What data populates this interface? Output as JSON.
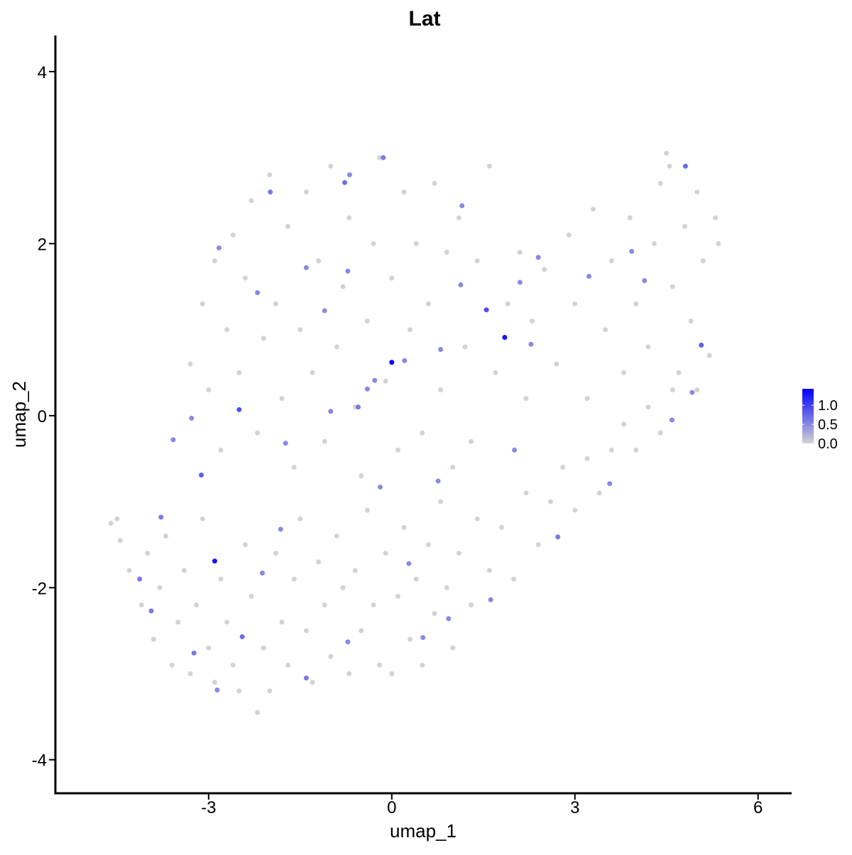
{
  "chart_data": {
    "type": "scatter",
    "title": "Lat",
    "xlabel": "umap_1",
    "ylabel": "umap_2",
    "xlim": [
      -5.51,
      6.55
    ],
    "ylim": [
      -4.39,
      4.42
    ],
    "xticks": [
      -3,
      0,
      3,
      6
    ],
    "yticks": [
      -4,
      -2,
      0,
      2,
      4
    ],
    "colorbar": {
      "lim": [
        0,
        1.43
      ],
      "colors": [
        "#d3d3d3",
        "#0000ff"
      ],
      "ticks": [
        {
          "value": 0,
          "label": "0.0"
        },
        {
          "value": 0.5,
          "label": "0.5"
        },
        {
          "value": 1,
          "label": "1.0"
        }
      ]
    },
    "x": [
      -4.6,
      -4.5,
      -4.45,
      -4.3,
      -4.1,
      -4.0,
      -3.9,
      -3.8,
      -3.7,
      -3.6,
      -3.5,
      -3.4,
      -3.3,
      -3.2,
      -3.1,
      -3.0,
      -2.9,
      -2.8,
      -2.7,
      -2.6,
      -2.5,
      -2.4,
      -2.3,
      -2.2,
      -2.1,
      -2.0,
      -1.9,
      -1.8,
      -1.7,
      -1.6,
      -1.5,
      -1.4,
      -1.3,
      -1.2,
      -1.1,
      -1.0,
      -0.9,
      -0.8,
      -0.7,
      -0.6,
      -0.5,
      -0.4,
      -0.3,
      -0.2,
      -0.1,
      0.0,
      0.1,
      0.2,
      0.3,
      0.4,
      0.5,
      0.6,
      0.7,
      0.8,
      0.9,
      1.0,
      1.1,
      1.3,
      1.4,
      1.6,
      1.8,
      2.0,
      2.2,
      2.4,
      2.6,
      2.8,
      3.0,
      3.2,
      3.4,
      3.6,
      3.8,
      4.0,
      4.2,
      4.4,
      4.6,
      -3.3,
      -3.1,
      -3.0,
      -2.9,
      -2.8,
      -2.7,
      -2.6,
      -2.5,
      -2.4,
      -2.3,
      -2.2,
      -2.1,
      -2.0,
      -1.9,
      -1.8,
      -1.7,
      -1.6,
      -1.5,
      -1.4,
      -1.3,
      -1.2,
      -1.1,
      -1.0,
      -0.9,
      -0.8,
      -0.7,
      -0.6,
      -0.5,
      -0.4,
      -0.3,
      -0.2,
      -0.1,
      0.0,
      0.1,
      0.2,
      0.3,
      0.4,
      0.5,
      0.6,
      0.7,
      0.8,
      0.9,
      1.0,
      1.1,
      1.2,
      1.4,
      1.3,
      1.6,
      1.7,
      1.9,
      2.1,
      2.2,
      2.3,
      2.5,
      2.7,
      2.9,
      3.0,
      3.2,
      3.3,
      3.5,
      3.6,
      3.8,
      3.9,
      4.0,
      4.2,
      4.3,
      4.4,
      4.5,
      4.6,
      4.7,
      4.8,
      4.9,
      5.0,
      5.1,
      5.2,
      5.3,
      5.35,
      5.0,
      4.55,
      -0.72,
      -0.69,
      -0.28,
      0.21,
      -0.4,
      2.28,
      2.1,
      2.4,
      -2.83,
      -1.4,
      -3.78,
      -3.58,
      -2.12,
      0.28,
      -1.4,
      -2.86,
      2.72,
      3.57,
      3.93,
      4.59,
      0.76,
      1.13,
      -1.1,
      -2.2,
      -4.13,
      -2.45,
      -0.72,
      0.51,
      1.62,
      2.01,
      -1.0,
      -1.82,
      -3.28,
      -3.94,
      0.8,
      -0.19,
      -1.74,
      0.93,
      4.14,
      4.92,
      3.23,
      1.15,
      -1.99,
      -3.24,
      -0.55,
      -0.14,
      -0.77,
      -3.12,
      -2.5,
      4.81,
      5.07,
      1.55,
      -2.9,
      1.85,
      0.0
    ],
    "y": [
      -1.25,
      -1.2,
      -1.45,
      -1.8,
      -2.2,
      -1.6,
      -2.6,
      -2.0,
      -1.4,
      -2.9,
      -2.4,
      -1.8,
      -3.0,
      -2.2,
      -1.2,
      -2.7,
      -3.1,
      -1.9,
      -2.4,
      -2.9,
      -3.2,
      -1.5,
      -2.1,
      -3.45,
      -2.7,
      -3.2,
      -1.6,
      -2.4,
      -2.9,
      -1.9,
      -1.2,
      -2.5,
      -3.1,
      -1.7,
      -2.2,
      -2.8,
      -1.4,
      -2.0,
      -3.0,
      -1.8,
      -2.5,
      -1.1,
      -2.2,
      -2.9,
      -1.6,
      -3.0,
      -2.1,
      -1.3,
      -2.6,
      -1.9,
      -2.9,
      -1.5,
      -2.3,
      -1.0,
      -2.0,
      -2.7,
      -1.6,
      -2.2,
      -1.2,
      -1.8,
      -1.3,
      -1.9,
      -0.9,
      -1.5,
      -1.0,
      -0.6,
      -1.1,
      -0.5,
      -0.9,
      -0.4,
      -0.1,
      -0.4,
      0.1,
      -0.2,
      0.3,
      0.6,
      1.3,
      0.3,
      1.8,
      -0.4,
      1.0,
      2.1,
      0.5,
      1.6,
      2.5,
      -0.2,
      0.9,
      2.8,
      1.3,
      0.2,
      2.2,
      -0.6,
      1.0,
      2.6,
      0.5,
      1.8,
      -0.3,
      2.9,
      0.8,
      1.5,
      2.3,
      0.1,
      -0.7,
      1.1,
      2.0,
      3.0,
      0.4,
      1.6,
      -0.4,
      2.6,
      1.0,
      2.0,
      -0.2,
      1.3,
      2.7,
      0.3,
      1.9,
      -0.6,
      2.3,
      0.8,
      1.8,
      -0.3,
      2.9,
      0.5,
      1.3,
      1.9,
      0.2,
      1.1,
      1.7,
      0.6,
      2.1,
      1.3,
      0.2,
      2.4,
      1.0,
      1.8,
      0.5,
      2.3,
      1.3,
      0.8,
      2.0,
      2.7,
      3.05,
      1.5,
      0.5,
      2.2,
      1.1,
      2.6,
      1.8,
      0.7,
      2.3,
      2.0,
      0.3,
      2.9,
      -2.63,
      2.8,
      0.41,
      0.64,
      0.31,
      0.83,
      1.55,
      1.84,
      1.95,
      1.72,
      -1.18,
      -0.28,
      -1.83,
      -1.72,
      -3.05,
      -3.19,
      -1.41,
      -0.79,
      1.91,
      -0.05,
      -0.76,
      1.52,
      1.22,
      1.43,
      -1.9,
      -2.57,
      1.68,
      -2.58,
      -2.14,
      -0.4,
      0.05,
      -1.32,
      -0.03,
      -2.27,
      0.77,
      -0.83,
      -0.32,
      -2.36,
      1.57,
      0.27,
      1.62,
      2.44,
      2.6,
      -2.76,
      0.1,
      3.0,
      2.71,
      -0.69,
      0.07,
      2.9,
      0.82,
      1.23,
      -1.69,
      0.91,
      0.62
    ],
    "values": [
      0,
      0,
      0,
      0,
      0,
      0,
      0,
      0,
      0,
      0,
      0,
      0,
      0,
      0,
      0,
      0,
      0,
      0,
      0,
      0,
      0,
      0,
      0,
      0,
      0,
      0,
      0,
      0,
      0,
      0,
      0,
      0,
      0,
      0,
      0,
      0,
      0,
      0,
      0,
      0,
      0,
      0,
      0,
      0,
      0,
      0,
      0,
      0,
      0,
      0,
      0,
      0,
      0,
      0,
      0,
      0,
      0,
      0,
      0,
      0,
      0,
      0,
      0,
      0,
      0,
      0,
      0,
      0,
      0,
      0,
      0,
      0,
      0,
      0,
      0,
      0,
      0,
      0,
      0,
      0,
      0,
      0,
      0,
      0,
      0,
      0,
      0,
      0,
      0,
      0,
      0,
      0,
      0,
      0,
      0,
      0,
      0,
      0,
      0,
      0,
      0,
      0,
      0,
      0,
      0,
      0,
      0,
      0,
      0,
      0,
      0,
      0,
      0,
      0,
      0,
      0,
      0,
      0,
      0,
      0,
      0,
      0,
      0,
      0,
      0,
      0,
      0,
      0,
      0,
      0,
      0,
      0,
      0,
      0,
      0,
      0,
      0,
      0,
      0,
      0,
      0,
      0,
      0,
      0,
      0,
      0,
      0,
      0,
      0,
      0,
      0,
      0,
      0,
      0,
      0.5,
      0.5,
      0.5,
      0.5,
      0.5,
      0.5,
      0.5,
      0.5,
      0.5,
      0.5,
      0.6,
      0.5,
      0.5,
      0.5,
      0.6,
      0.5,
      0.6,
      0.5,
      0.5,
      0.5,
      0.5,
      0.5,
      0.5,
      0.5,
      0.6,
      0.7,
      0.5,
      0.5,
      0.5,
      0.5,
      0.5,
      0.5,
      0.5,
      0.6,
      0.5,
      0.5,
      0.5,
      0.5,
      0.5,
      0.5,
      0.5,
      0.5,
      0.6,
      0.6,
      0.6,
      0.6,
      0.7,
      0.8,
      0.9,
      0.7,
      0.8,
      0.9,
      1.3,
      1.3,
      1.4
    ]
  }
}
